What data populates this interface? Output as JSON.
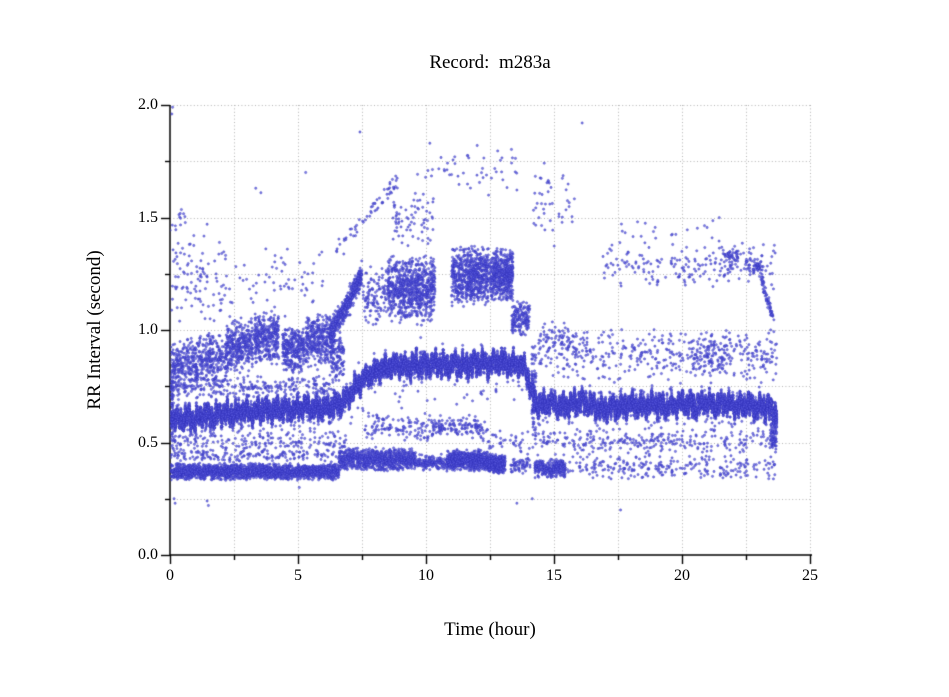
{
  "chart_data": {
    "type": "scatter",
    "title": "Record:  m283a",
    "xlabel": "Time (hour)",
    "ylabel": "RR Interval (second)",
    "xlim": [
      0,
      25
    ],
    "ylim": [
      0,
      2
    ],
    "x_axis": {
      "label": "Time (hour)",
      "major_ticks": {
        "values": [
          0,
          5,
          10,
          15,
          20,
          25
        ],
        "labels": [
          "0",
          "5",
          "10",
          "15",
          "20",
          "25"
        ]
      },
      "minor_step": 2.5
    },
    "y_axis": {
      "label": "RR Interval (second)",
      "major_ticks": {
        "values": [
          0,
          0.5,
          1,
          1.5,
          2
        ],
        "labels": [
          "0.0",
          "0.5",
          "1.0",
          "1.5",
          "2.0"
        ]
      },
      "minor_step": 0.25
    },
    "grid": {
      "style": "dotted",
      "color": "#b3b3b3",
      "spacing": "every minor tick"
    },
    "marker": {
      "shape": "open-circle",
      "radius_px": 1.15,
      "fill_color": "#5c5ce0",
      "edge_color": "#2c2cb4"
    },
    "axis_color": "#000000",
    "background": "#ffffff",
    "legend": "none",
    "time_span_hours": [
      0,
      23.7
    ],
    "main_band": {
      "description": "dense band of normal sinus RR intervals vs time",
      "points": 15000,
      "anchors_t_rr": [
        [
          0,
          0.615
        ],
        [
          0.3,
          0.6
        ],
        [
          0.7,
          0.615
        ],
        [
          1,
          0.6
        ],
        [
          1.3,
          0.625
        ],
        [
          1.7,
          0.61
        ],
        [
          2,
          0.635
        ],
        [
          2.4,
          0.62
        ],
        [
          2.8,
          0.645
        ],
        [
          3.2,
          0.63
        ],
        [
          3.6,
          0.65
        ],
        [
          4,
          0.64
        ],
        [
          4.4,
          0.655
        ],
        [
          4.8,
          0.64
        ],
        [
          5.2,
          0.66
        ],
        [
          5.6,
          0.65
        ],
        [
          6,
          0.655
        ],
        [
          6.4,
          0.66
        ],
        [
          6.8,
          0.68
        ],
        [
          7.2,
          0.74
        ],
        [
          7.6,
          0.79
        ],
        [
          8,
          0.815
        ],
        [
          8.4,
          0.83
        ],
        [
          8.8,
          0.845
        ],
        [
          9.2,
          0.835
        ],
        [
          9.6,
          0.85
        ],
        [
          10,
          0.84
        ],
        [
          10.4,
          0.855
        ],
        [
          10.8,
          0.84
        ],
        [
          11.2,
          0.85
        ],
        [
          11.6,
          0.84
        ],
        [
          12,
          0.855
        ],
        [
          12.4,
          0.845
        ],
        [
          12.8,
          0.86
        ],
        [
          13.2,
          0.85
        ],
        [
          13.6,
          0.845
        ],
        [
          13.9,
          0.825
        ],
        [
          14.05,
          0.76
        ],
        [
          14.2,
          0.68
        ],
        [
          14.5,
          0.665
        ],
        [
          14.9,
          0.68
        ],
        [
          15.3,
          0.655
        ],
        [
          15.7,
          0.67
        ],
        [
          16.1,
          0.685
        ],
        [
          16.5,
          0.66
        ],
        [
          16.9,
          0.645
        ],
        [
          17.3,
          0.66
        ],
        [
          17.7,
          0.655
        ],
        [
          18.1,
          0.67
        ],
        [
          18.5,
          0.66
        ],
        [
          18.9,
          0.675
        ],
        [
          19.3,
          0.66
        ],
        [
          19.7,
          0.665
        ],
        [
          20.1,
          0.675
        ],
        [
          20.5,
          0.66
        ],
        [
          20.9,
          0.68
        ],
        [
          21.3,
          0.665
        ],
        [
          21.7,
          0.675
        ],
        [
          22.1,
          0.66
        ],
        [
          22.5,
          0.67
        ],
        [
          22.9,
          0.655
        ],
        [
          23.3,
          0.66
        ],
        [
          23.7,
          0.63
        ]
      ],
      "jitter_rr": 0.018,
      "band_halfwidth_rr": 0.025,
      "wiggle_amp_rr": [
        0.022,
        0.016,
        0.011
      ],
      "wiggle_freq": [
        41.7,
        16.3,
        73.1
      ],
      "down_spike": {
        "prob": 0.03,
        "max_rr": 0.2
      },
      "up_spike": {
        "prob": 0.012,
        "max_rr": 0.12
      }
    },
    "clusters": [
      {
        "name": "start-column",
        "t": [
          0,
          0.15
        ],
        "rr": [
          0.5,
          0.97
        ],
        "n": 70
      },
      {
        "name": "upper-left-a",
        "t": [
          0.1,
          1.1
        ],
        "rr": [
          0.72,
          0.97
        ],
        "n": 230
      },
      {
        "name": "upper-left-b",
        "t": [
          1.1,
          2.2
        ],
        "rr": [
          0.74,
          1.0
        ],
        "n": 250
      },
      {
        "name": "upper-left-c",
        "t": [
          2.2,
          3.25
        ],
        "rr": [
          0.8,
          1.06
        ],
        "n": 330
      },
      {
        "name": "upper-left-d",
        "t": [
          3.3,
          4.25
        ],
        "rr": [
          0.84,
          1.09
        ],
        "n": 330
      },
      {
        "name": "upper-left-e",
        "t": [
          4.4,
          5.25
        ],
        "rr": [
          0.8,
          1.02
        ],
        "n": 300
      },
      {
        "name": "upper-left-f",
        "t": [
          5.3,
          6.3
        ],
        "rr": [
          0.82,
          1.08
        ],
        "n": 330
      },
      {
        "name": "upper-left-g",
        "t": [
          6.3,
          6.8
        ],
        "rr": [
          0.78,
          1.0
        ],
        "n": 120
      },
      {
        "name": "upper-left-blend",
        "t": [
          0,
          6.6
        ],
        "rr": [
          0.69,
          0.8
        ],
        "n": 260
      },
      {
        "name": "left-strays-high-a",
        "t": [
          0.05,
          2.3
        ],
        "rr": [
          1.02,
          1.45
        ],
        "n": 100
      },
      {
        "name": "left-strays-high-b",
        "t": [
          2.3,
          6.2
        ],
        "rr": [
          1.05,
          1.38
        ],
        "n": 60
      },
      {
        "name": "left-edge-column",
        "t": [
          0,
          0.6
        ],
        "rr": [
          1.42,
          1.56
        ],
        "n": 13
      },
      {
        "name": "blob-7h",
        "t": [
          6.25,
          7.5
        ],
        "rr": [
          0.98,
          1.24
        ],
        "n": 460,
        "trend": true,
        "spread": 0.05
      },
      {
        "name": "bridge-8h",
        "t": [
          7.55,
          8.5
        ],
        "rr": [
          1.0,
          1.3
        ],
        "n": 110
      },
      {
        "name": "blob-9h",
        "t": [
          8.5,
          10.35
        ],
        "rr": [
          1.02,
          1.34
        ],
        "n": 760
      },
      {
        "name": "blob-11h",
        "t": [
          11.0,
          12.45
        ],
        "rr": [
          1.1,
          1.38
        ],
        "n": 660
      },
      {
        "name": "blob-13h",
        "t": [
          12.5,
          13.4
        ],
        "rr": [
          1.12,
          1.37
        ],
        "n": 480
      },
      {
        "name": "rising-arc",
        "t": [
          6.5,
          9.0
        ],
        "rr": [
          1.36,
          1.68
        ],
        "n": 60,
        "trend": true,
        "spread": 0.04
      },
      {
        "name": "high-arc-2",
        "t": [
          8.7,
          10.3
        ],
        "rr": [
          1.35,
          1.62
        ],
        "n": 70
      },
      {
        "name": "high-strays-mid",
        "t": [
          9.5,
          13.6
        ],
        "rr": [
          1.58,
          1.84
        ],
        "n": 48
      },
      {
        "name": "high-14-16",
        "t": [
          14.2,
          15.8
        ],
        "rr": [
          1.36,
          1.76
        ],
        "n": 45
      },
      {
        "name": "blob-13p7-low",
        "t": [
          13.35,
          14.05
        ],
        "rr": [
          0.97,
          1.13
        ],
        "n": 160
      },
      {
        "name": "pause-column-14",
        "t": [
          14.12,
          14.3
        ],
        "rr": [
          0.5,
          0.95
        ],
        "n": 90
      },
      {
        "name": "upper-right-band",
        "t": [
          16.9,
          23.7
        ],
        "rr": [
          1.18,
          1.4
        ],
        "n": 200
      },
      {
        "name": "upper-right-strays",
        "t": [
          17.5,
          21.5
        ],
        "rr": [
          1.38,
          1.52
        ],
        "n": 20
      },
      {
        "name": "streak-21p9",
        "t": [
          21.6,
          22.2
        ],
        "rr": [
          1.3,
          1.36
        ],
        "n": 40
      },
      {
        "name": "streak-22p8",
        "t": [
          22.5,
          23.1
        ],
        "rr": [
          1.25,
          1.32
        ],
        "n": 50
      },
      {
        "name": "descend-23p4",
        "t": [
          23.1,
          23.6
        ],
        "rr": [
          1.22,
          1.04
        ],
        "n": 60,
        "trend": true,
        "spread": 0.03
      },
      {
        "name": "right-mid-scatter",
        "t": [
          14.4,
          23.7
        ],
        "rr": [
          0.76,
          1.02
        ],
        "n": 380
      },
      {
        "name": "right-mid-blob-15",
        "t": [
          14.4,
          16.3
        ],
        "rr": [
          0.88,
          1.05
        ],
        "n": 70
      },
      {
        "name": "right-mid-blob-21",
        "t": [
          20.3,
          21.9
        ],
        "rr": [
          0.78,
          1.0
        ],
        "n": 110
      },
      {
        "name": "low-band-a",
        "t": [
          0,
          6.6
        ],
        "rr": [
          0.33,
          0.41
        ],
        "n": 1900
      },
      {
        "name": "low-band-a-top",
        "t": [
          0,
          6.6
        ],
        "rr": [
          0.41,
          0.47
        ],
        "n": 150
      },
      {
        "name": "low-band-b",
        "t": [
          6.6,
          9.6
        ],
        "rr": [
          0.37,
          0.48
        ],
        "n": 900
      },
      {
        "name": "low-band-c",
        "t": [
          9.6,
          10.75
        ],
        "rr": [
          0.37,
          0.45
        ],
        "n": 150
      },
      {
        "name": "low-band-d",
        "t": [
          10.8,
          12.4
        ],
        "rr": [
          0.37,
          0.47
        ],
        "n": 700
      },
      {
        "name": "low-band-e",
        "t": [
          12.4,
          13.1
        ],
        "rr": [
          0.36,
          0.45
        ],
        "n": 360
      },
      {
        "name": "low-band-f",
        "t": [
          13.3,
          14.1
        ],
        "rr": [
          0.36,
          0.44
        ],
        "n": 60
      },
      {
        "name": "low-band-g",
        "t": [
          14.25,
          15.45
        ],
        "rr": [
          0.34,
          0.43
        ],
        "n": 280
      },
      {
        "name": "low-band-h",
        "t": [
          15.5,
          23.65
        ],
        "rr": [
          0.33,
          0.45
        ],
        "n": 250
      },
      {
        "name": "mid-scatter-left",
        "t": [
          0,
          7
        ],
        "rr": [
          0.44,
          0.56
        ],
        "n": 170
      },
      {
        "name": "mid-scatter-mid",
        "t": [
          7.6,
          12.4
        ],
        "rr": [
          0.5,
          0.63
        ],
        "n": 260
      },
      {
        "name": "mid-scatter-right",
        "t": [
          12.4,
          23.7
        ],
        "rr": [
          0.44,
          0.56
        ],
        "n": 300
      },
      {
        "name": "end-tail",
        "t": [
          23.45,
          23.7
        ],
        "rr": [
          0.45,
          0.62
        ],
        "n": 60
      }
    ],
    "isolated_points_t_rr": [
      [
        0.07,
        1.96
      ],
      [
        0.1,
        1.99
      ],
      [
        0.16,
        0.25
      ],
      [
        0.2,
        0.23
      ],
      [
        1.45,
        0.24
      ],
      [
        1.5,
        0.22
      ],
      [
        1.45,
        1.47
      ],
      [
        3.35,
        1.63
      ],
      [
        3.55,
        1.61
      ],
      [
        5.05,
        0.3
      ],
      [
        5.3,
        1.7
      ],
      [
        7.42,
        1.88
      ],
      [
        10.15,
        1.83
      ],
      [
        12.0,
        1.82
      ],
      [
        13.55,
        0.23
      ],
      [
        14.15,
        0.25
      ],
      [
        16.1,
        1.92
      ],
      [
        17.6,
        0.2
      ]
    ]
  }
}
